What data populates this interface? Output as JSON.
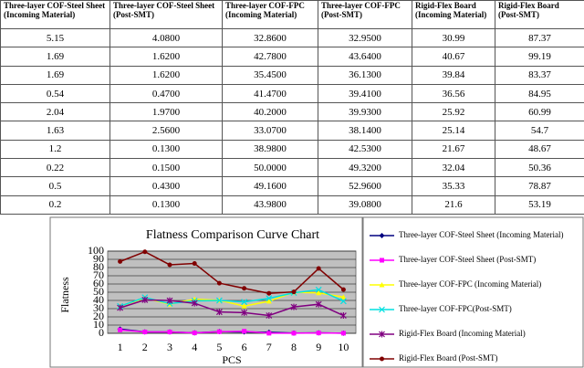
{
  "table": {
    "header": [
      "Three-layer COF-Steel Sheet (Incoming Material)",
      "Three-layer COF-Steel Sheet (Post-SMT)",
      "Three-layer COF-FPC (Incoming Material)",
      "Three-layer COF-FPC (Post-SMT)",
      "Rigid-Flex Board (Incoming Material)",
      "Rigid-Flex Board (Post-SMT)"
    ],
    "rows": [
      [
        "5.15",
        "4.0800",
        "32.8600",
        "32.9500",
        "30.99",
        "87.37"
      ],
      [
        "1.69",
        "1.6200",
        "42.7800",
        "43.6400",
        "40.67",
        "99.19"
      ],
      [
        "1.69",
        "1.6200",
        "35.4500",
        "36.1300",
        "39.84",
        "83.37"
      ],
      [
        "0.54",
        "0.4700",
        "41.4700",
        "39.4100",
        "36.56",
        "84.95"
      ],
      [
        "2.04",
        "1.9700",
        "40.2000",
        "39.9300",
        "25.92",
        "60.99"
      ],
      [
        "1.63",
        "2.5600",
        "33.0700",
        "38.1400",
        "25.14",
        "54.7"
      ],
      [
        "1.2",
        "0.1300",
        "38.9800",
        "42.5300",
        "21.67",
        "48.67"
      ],
      [
        "0.22",
        "0.1500",
        "50.0000",
        "49.3200",
        "32.04",
        "50.36"
      ],
      [
        "0.5",
        "0.4300",
        "49.1600",
        "52.9600",
        "35.33",
        "78.87"
      ],
      [
        "0.2",
        "0.1300",
        "43.9800",
        "39.0800",
        "21.6",
        "53.19"
      ]
    ]
  },
  "chart_data": {
    "type": "line",
    "title": "Flatness Comparison Curve Chart",
    "x_label": "PCS",
    "y_label": "Flatness",
    "categories": [
      "1",
      "2",
      "3",
      "4",
      "5",
      "6",
      "7",
      "8",
      "9",
      "10"
    ],
    "ylim": [
      0,
      100
    ],
    "yticks": [
      0,
      10,
      20,
      30,
      40,
      50,
      60,
      70,
      80,
      90,
      100
    ],
    "grid": true,
    "legend": "right",
    "series": [
      {
        "name": "Three-layer COF-Steel Sheet (Incoming Material)",
        "color": "#000080",
        "marker": "diamond",
        "values": [
          5.15,
          1.69,
          1.69,
          0.54,
          2.04,
          1.63,
          1.2,
          0.22,
          0.5,
          0.2
        ]
      },
      {
        "name": "Three-layer COF-Steel Sheet (Post-SMT)",
        "color": "#ff00ff",
        "marker": "square",
        "values": [
          4.08,
          1.62,
          1.62,
          0.47,
          1.97,
          2.56,
          0.13,
          0.15,
          0.43,
          0.13
        ]
      },
      {
        "name": "Three-layer COF-FPC (Incoming Material)",
        "color": "#ffff00",
        "marker": "triangle",
        "values": [
          32.86,
          42.78,
          35.45,
          41.47,
          40.2,
          33.07,
          38.98,
          50,
          49.16,
          43.98
        ]
      },
      {
        "name": "Three-layer COF-FPC(Post-SMT)",
        "color": "#00e0e0",
        "marker": "x",
        "values": [
          32.95,
          43.64,
          36.13,
          39.41,
          39.93,
          38.14,
          42.53,
          49.32,
          52.96,
          39.08
        ]
      },
      {
        "name": "Rigid-Flex Board (Incoming Material)",
        "color": "#800080",
        "marker": "star",
        "values": [
          30.99,
          40.67,
          39.84,
          36.56,
          25.92,
          25.14,
          21.67,
          32.04,
          35.33,
          21.6
        ]
      },
      {
        "name": "Rigid-Flex Board (Post-SMT)",
        "color": "#800000",
        "marker": "circle",
        "values": [
          87.37,
          99.19,
          83.37,
          84.95,
          60.99,
          54.7,
          48.67,
          50.36,
          78.87,
          53.19
        ]
      }
    ]
  }
}
